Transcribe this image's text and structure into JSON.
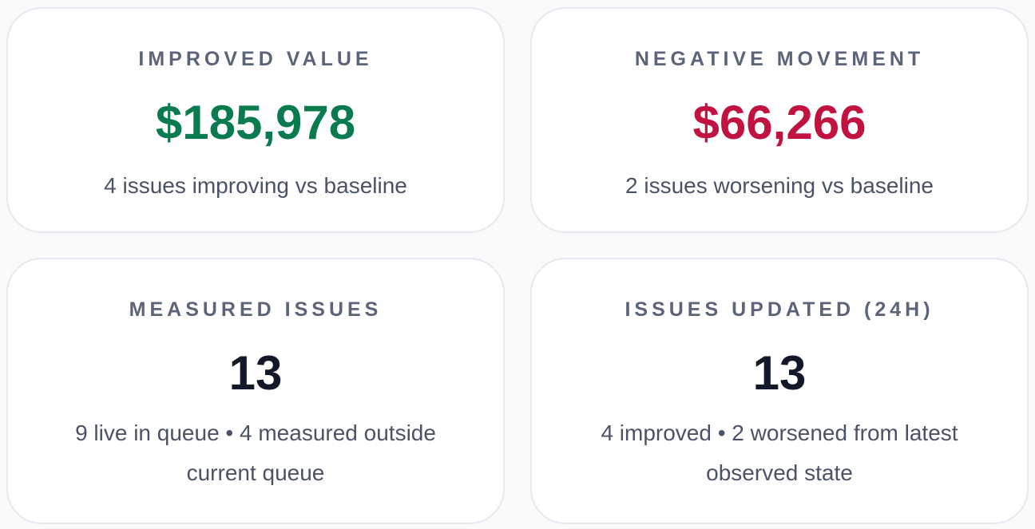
{
  "cards": [
    {
      "label": "IMPROVED VALUE",
      "value": "$185,978",
      "value_color": "#0a7a4f",
      "sub": "4 issues improving vs baseline"
    },
    {
      "label": "NEGATIVE MOVEMENT",
      "value": "$66,266",
      "value_color": "#c2123f",
      "sub": "2 issues worsening vs baseline"
    },
    {
      "label": "MEASURED ISSUES",
      "value": "13",
      "value_color": "#111827",
      "sub": "9 live in queue • 4 measured outside current queue"
    },
    {
      "label": "ISSUES UPDATED (24H)",
      "value": "13",
      "value_color": "#111827",
      "sub": "4 improved • 2 worsened from latest observed state"
    }
  ]
}
